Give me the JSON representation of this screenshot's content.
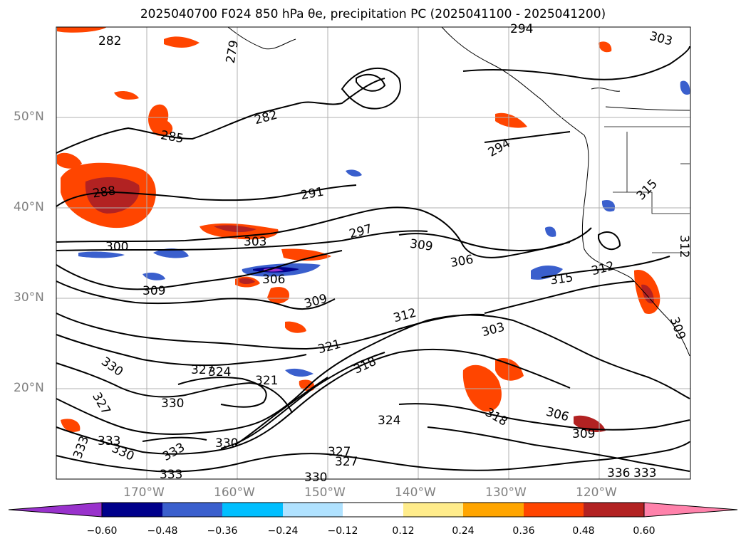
{
  "title": "2025040700 F024 850 hPa θe, precipitation PC (2025041100 - 2025041200)",
  "lat_labels": [
    "50°N",
    "40°N",
    "30°N",
    "20°N"
  ],
  "lon_labels": [
    "170°W",
    "160°W",
    "150°W",
    "140°W",
    "130°W",
    "120°W"
  ],
  "contour_labels": [
    "282",
    "279",
    "294",
    "303",
    "282",
    "285",
    "294",
    "288",
    "291",
    "297",
    "300",
    "303",
    "309",
    "306",
    "306",
    "309",
    "315",
    "312",
    "315",
    "312",
    "309",
    "309",
    "312",
    "303",
    "321",
    "330",
    "327",
    "324",
    "318",
    "321",
    "327",
    "330",
    "324",
    "306",
    "309",
    "333",
    "333",
    "330",
    "333",
    "330",
    "327",
    "327",
    "330",
    "333",
    "336",
    "333",
    "318"
  ],
  "colorbar": {
    "ticks": [
      "−0.60",
      "−0.48",
      "−0.36",
      "−0.24",
      "−0.12",
      "0.12",
      "0.24",
      "0.36",
      "0.48",
      "0.60"
    ],
    "colors": [
      "#9932CC",
      "#00008B",
      "#3A5FCD",
      "#00BFFF",
      "#B0E2FF",
      "#FFFFFF",
      "#FFEC8B",
      "#FFA500",
      "#FF4500",
      "#B22222",
      "#FF82AB"
    ]
  }
}
